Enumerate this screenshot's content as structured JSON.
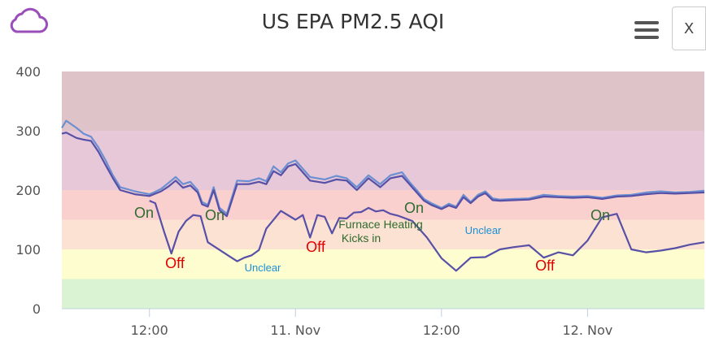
{
  "title": "US EPA PM2.5 AQI",
  "close_label": "X",
  "icons": {
    "logo": "cloud-icon",
    "menu": "hamburger-menu-icon"
  },
  "colors": {
    "series": "#5750a6",
    "series_light": "#6c8fd1",
    "band_good": "#d9f3d3",
    "band_moderate": "#fdfdd0",
    "band_usg": "#fce2d2",
    "band_unhealthy": "#fad0cf",
    "band_very_unhealthy": "#e6c8d8",
    "band_hazardous": "#dec3c8",
    "ann_on": "#2e6b2e",
    "ann_off": "#e00000",
    "ann_unclear": "#1a8fd6",
    "cloud": "#9b4dba"
  },
  "chart_data": {
    "type": "line",
    "title": "US EPA PM2.5 AQI",
    "xlabel": "",
    "ylabel": "",
    "xlim": [
      0,
      44
    ],
    "ylim": [
      0,
      400
    ],
    "y_ticks": [
      0,
      100,
      200,
      300,
      400
    ],
    "x_ticks": [
      {
        "x": 6,
        "label": "12:00"
      },
      {
        "x": 16,
        "label": "11. Nov"
      },
      {
        "x": 26,
        "label": "12:00"
      },
      {
        "x": 36,
        "label": "12. Nov"
      }
    ],
    "bands": [
      {
        "from": 0,
        "to": 50,
        "color_key": "band_good"
      },
      {
        "from": 50,
        "to": 100,
        "color_key": "band_moderate"
      },
      {
        "from": 100,
        "to": 150,
        "color_key": "band_usg"
      },
      {
        "from": 150,
        "to": 200,
        "color_key": "band_unhealthy"
      },
      {
        "from": 200,
        "to": 300,
        "color_key": "band_very_unhealthy"
      },
      {
        "from": 300,
        "to": 400,
        "color_key": "band_hazardous"
      }
    ],
    "series": [
      {
        "color_key": "series_light",
        "x": [
          0,
          0.3,
          1,
          1.5,
          2,
          2.5,
          3,
          3.5,
          4,
          5,
          6,
          6.3,
          6.8,
          7.3,
          7.8,
          8.3,
          8.8,
          9.3,
          9.6,
          10,
          10.4,
          10.8,
          11.3,
          12,
          12.8,
          13.5,
          14,
          14.5,
          15,
          15.5,
          16,
          17,
          18,
          18.8,
          19.5,
          20.2,
          21,
          21.8,
          22.5,
          23.3,
          23.8,
          24.3,
          24.8,
          25.3,
          26,
          26.5,
          27,
          27.5,
          28,
          28.5,
          29,
          29.5,
          30,
          31,
          32,
          33,
          34,
          35,
          36,
          37,
          38,
          39,
          40,
          41,
          42,
          43,
          44
        ],
        "y": [
          305,
          317,
          305,
          295,
          290,
          272,
          250,
          225,
          205,
          198,
          193,
          196,
          202,
          212,
          222,
          210,
          214,
          200,
          180,
          175,
          205,
          170,
          160,
          216,
          215,
          220,
          215,
          240,
          230,
          245,
          250,
          222,
          218,
          224,
          220,
          205,
          225,
          210,
          225,
          230,
          214,
          200,
          185,
          178,
          170,
          177,
          172,
          192,
          180,
          192,
          198,
          186,
          184,
          185,
          186,
          192,
          190,
          189,
          190,
          187,
          191,
          192,
          196,
          198,
          196,
          197,
          199
        ]
      },
      {
        "color_key": "series",
        "x": [
          0,
          0.3,
          1,
          1.5,
          2,
          2.5,
          3,
          3.5,
          4,
          5,
          6,
          6.3,
          6.8,
          7.3,
          7.8,
          8.3,
          8.8,
          9.3,
          9.6,
          10,
          10.4,
          10.8,
          11.3,
          12,
          12.8,
          13.5,
          14,
          14.5,
          15,
          15.5,
          16,
          17,
          18,
          18.8,
          19.5,
          20.2,
          21,
          21.8,
          22.5,
          23.3,
          23.8,
          24.3,
          24.8,
          25.3,
          26,
          26.5,
          27,
          27.5,
          28,
          28.5,
          29,
          29.5,
          30,
          31,
          32,
          33,
          34,
          35,
          36,
          37,
          38,
          39,
          40,
          41,
          42,
          43,
          44
        ],
        "y": [
          295,
          297,
          288,
          285,
          283,
          265,
          242,
          220,
          200,
          193,
          190,
          193,
          198,
          206,
          216,
          204,
          208,
          196,
          176,
          172,
          200,
          166,
          156,
          210,
          210,
          214,
          210,
          232,
          225,
          240,
          244,
          216,
          212,
          218,
          216,
          200,
          220,
          205,
          220,
          224,
          210,
          196,
          182,
          175,
          168,
          174,
          170,
          188,
          178,
          189,
          195,
          183,
          182,
          183,
          184,
          189,
          188,
          187,
          188,
          185,
          189,
          190,
          193,
          195,
          194,
          195,
          196
        ]
      },
      {
        "color_key": "series",
        "x": [
          6,
          6.4,
          7,
          7.5,
          8,
          8.5,
          9,
          9.5,
          10,
          10.5,
          11,
          11.5,
          12,
          12.5,
          13,
          13.5,
          14,
          15,
          16,
          16.5,
          17,
          17.5,
          18,
          18.5,
          19,
          19.5,
          20,
          20.5,
          21,
          21.5,
          22,
          22.5,
          23,
          24,
          25,
          26,
          27,
          28,
          29,
          30,
          31,
          32,
          33,
          34,
          35,
          36,
          37,
          38,
          39,
          40,
          41,
          42,
          43,
          44
        ],
        "y": [
          182,
          178,
          130,
          93,
          130,
          148,
          158,
          156,
          112,
          104,
          96,
          88,
          80,
          86,
          90,
          99,
          135,
          165,
          150,
          158,
          120,
          158,
          155,
          127,
          153,
          152,
          162,
          163,
          170,
          164,
          166,
          160,
          157,
          148,
          120,
          85,
          64,
          86,
          87,
          100,
          104,
          107,
          86,
          95,
          90,
          115,
          154,
          160,
          100,
          95,
          98,
          102,
          108,
          112
        ]
      }
    ],
    "annotations": [
      {
        "text": "On",
        "style": "on"
      },
      {
        "text": "On",
        "style": "on"
      },
      {
        "text": "Off",
        "style": "off"
      },
      {
        "text": "Off",
        "style": "off"
      },
      {
        "text": "Unclear",
        "style": "unclear"
      },
      {
        "text": "Furnace Heating",
        "style": "on_small"
      },
      {
        "text": "Kicks in",
        "style": "on_small"
      },
      {
        "text": "On",
        "style": "on"
      },
      {
        "text": "Unclear",
        "style": "unclear"
      },
      {
        "text": "Off",
        "style": "off"
      },
      {
        "text": "On",
        "style": "on"
      }
    ]
  }
}
